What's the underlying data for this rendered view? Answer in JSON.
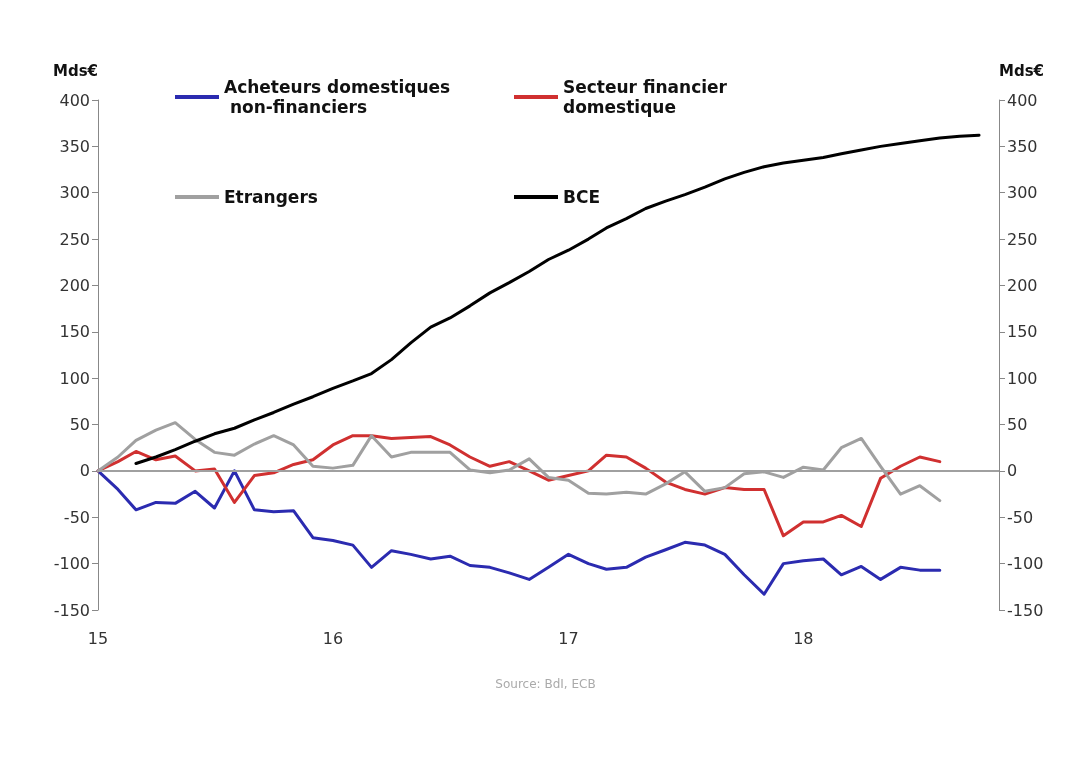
{
  "chart_data": {
    "type": "line",
    "ylabel": "Mds€",
    "y2label": "Mds€",
    "x": [
      "2015-01",
      "2015-02",
      "2015-03",
      "2015-04",
      "2015-05",
      "2015-06",
      "2015-07",
      "2015-08",
      "2015-09",
      "2015-10",
      "2015-11",
      "2015-12",
      "2016-01",
      "2016-02",
      "2016-03",
      "2016-04",
      "2016-05",
      "2016-06",
      "2016-07",
      "2016-08",
      "2016-09",
      "2016-10",
      "2016-11",
      "2016-12",
      "2017-01",
      "2017-02",
      "2017-03",
      "2017-04",
      "2017-05",
      "2017-06",
      "2017-07",
      "2017-08",
      "2017-09",
      "2017-10",
      "2017-11",
      "2017-12",
      "2018-01",
      "2018-02",
      "2018-03",
      "2018-04",
      "2018-05",
      "2018-06",
      "2018-07",
      "2018-08"
    ],
    "series": [
      {
        "name": "Acheteurs domestiques non-financiers",
        "color": "#2b2bb0",
        "values": [
          0,
          -20,
          -42,
          -34,
          -35,
          -22,
          -40,
          0,
          -42,
          -44,
          -43,
          -72,
          -75,
          -80,
          -104,
          -86,
          -90,
          -95,
          -92,
          -102,
          -104,
          -110,
          -117,
          -104,
          -90,
          -100,
          -106,
          -104,
          -93,
          -85,
          -77,
          -80,
          -90,
          -112,
          -133,
          -100,
          -97,
          -95,
          -112,
          -103,
          -117,
          -104,
          -107,
          -107
        ]
      },
      {
        "name": "Secteur financier domestique",
        "color": "#d03030",
        "values": [
          0,
          10,
          21,
          12,
          16,
          0,
          2,
          -34,
          -5,
          -2,
          7,
          12,
          28,
          38,
          38,
          35,
          36,
          37,
          28,
          15,
          5,
          10,
          0,
          -10,
          -5,
          0,
          17,
          15,
          3,
          -12,
          -20,
          -25,
          -18,
          -20,
          -20,
          -70,
          -55,
          -55,
          -48,
          -60,
          -8,
          5,
          15,
          10
        ]
      },
      {
        "name": "Etrangers",
        "color": "#a0a0a0",
        "values": [
          0,
          15,
          33,
          44,
          52,
          34,
          20,
          17,
          29,
          38,
          28,
          5,
          3,
          6,
          38,
          15,
          20,
          20,
          20,
          1,
          -2,
          1,
          13,
          -7,
          -10,
          -24,
          -25,
          -23,
          -25,
          -14,
          -1,
          -22,
          -18,
          -3,
          -1,
          -7,
          4,
          1,
          25,
          35,
          5,
          -25,
          -16,
          -32
        ]
      },
      {
        "name": "BCE",
        "color": "#000000",
        "x": [
          "2015-03",
          "2015-04",
          "2015-05",
          "2015-06",
          "2015-07",
          "2015-08",
          "2015-09",
          "2015-10",
          "2015-11",
          "2015-12",
          "2016-01",
          "2016-02",
          "2016-03",
          "2016-04",
          "2016-05",
          "2016-06",
          "2016-07",
          "2016-08",
          "2016-09",
          "2016-10",
          "2016-11",
          "2016-12",
          "2017-01",
          "2017-02",
          "2017-03",
          "2017-04",
          "2017-05",
          "2017-06",
          "2017-07",
          "2017-08",
          "2017-09",
          "2017-10",
          "2017-11",
          "2017-12",
          "2018-01",
          "2018-02",
          "2018-03",
          "2018-04",
          "2018-05",
          "2018-06",
          "2018-07",
          "2018-08",
          "2018-09",
          "2018-10"
        ],
        "values": [
          8,
          15,
          23,
          32,
          40,
          46,
          55,
          63,
          72,
          80,
          89,
          97,
          105,
          120,
          138,
          155,
          165,
          178,
          192,
          203,
          215,
          228,
          238,
          250,
          262,
          272,
          283,
          291,
          298,
          306,
          315,
          322,
          328,
          332,
          335,
          338,
          342,
          346,
          350,
          353,
          356,
          359,
          361,
          362
        ]
      }
    ],
    "xlim": [
      "2015-01",
      "2018-11"
    ],
    "xticks": [
      {
        "value": "2015-01",
        "label": "15"
      },
      {
        "value": "2016-01",
        "label": "16"
      },
      {
        "value": "2017-01",
        "label": "17"
      },
      {
        "value": "2018-01",
        "label": "18"
      }
    ],
    "ylim": [
      -150,
      400
    ],
    "yticks": [
      -150,
      -100,
      -50,
      0,
      50,
      100,
      150,
      200,
      250,
      300,
      350,
      400
    ],
    "y2lim": [
      -150,
      400
    ],
    "y2ticks": [
      -150,
      -100,
      -50,
      0,
      50,
      100,
      150,
      200,
      250,
      300,
      350,
      400
    ],
    "ref_lines": [
      {
        "axis": "y",
        "value": 0,
        "color": "#a0a0a0"
      }
    ],
    "annotations": [
      "Source: BdI, ECB"
    ],
    "legend": "top",
    "grid": false,
    "marker": "none",
    "line_style": "solid"
  }
}
